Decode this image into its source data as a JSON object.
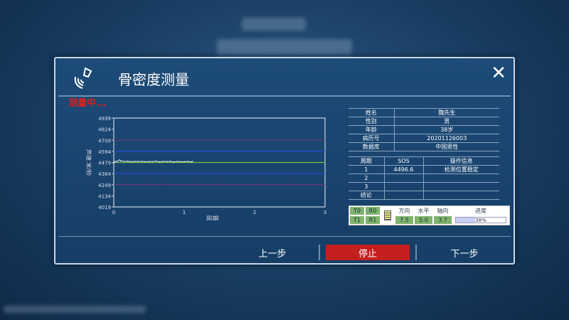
{
  "dialog": {
    "title": "骨密度测量",
    "status": "测量中...",
    "close_icon": "close-icon",
    "logo_icon": "ultrasound-probe-icon"
  },
  "patient": [
    {
      "label": "姓名",
      "value": "魏先生"
    },
    {
      "label": "性别",
      "value": "男"
    },
    {
      "label": "年龄",
      "value": "38岁"
    },
    {
      "label": "病历号",
      "value": "20201126003"
    },
    {
      "label": "数据库",
      "value": "中国男性"
    }
  ],
  "cycles": {
    "headers": [
      "周期",
      "SOS",
      "操作信息"
    ],
    "rows": [
      [
        "1",
        "4496.6",
        "检测位置稳定"
      ],
      [
        "2",
        "",
        ""
      ],
      [
        "3",
        "",
        ""
      ],
      [
        "结论",
        "",
        ""
      ]
    ]
  },
  "controls": {
    "t0": "T0",
    "r0": "R0",
    "t1": "T1",
    "r1": "R1",
    "labels": [
      "方向",
      "水平",
      "轴向"
    ],
    "values": [
      "7.5",
      "5.0",
      "3.7"
    ],
    "progress_label": "进度",
    "progress_text": "38%",
    "progress": 0.38
  },
  "buttons": {
    "prev": "上一步",
    "stop": "停止",
    "next": "下一步"
  },
  "colors": {
    "stop": "#c41f1f",
    "green_line": "#7cc04a",
    "blue_line": "#1e4fd0",
    "purple_line": "#6a3a7a"
  },
  "chart_data": {
    "type": "line",
    "xlabel": "周期",
    "ylabel": "声速 米/秒",
    "xlim": [
      0,
      3
    ],
    "ylim": [
      4019,
      4939
    ],
    "xticks": [
      "0",
      "1",
      "2",
      "3"
    ],
    "yticks": [
      "4939",
      "4824",
      "4709",
      "4594",
      "4479",
      "4364",
      "4249",
      "4134",
      "4019"
    ],
    "reference_lines": [
      {
        "y": 4709,
        "color": "purple"
      },
      {
        "y": 4594,
        "color": "blue"
      },
      {
        "y": 4479,
        "color": "green"
      },
      {
        "y": 4364,
        "color": "blue"
      },
      {
        "y": 4249,
        "color": "purple"
      }
    ],
    "series": [
      {
        "x": [
          0,
          0.02,
          0.05,
          0.08,
          0.1,
          0.15,
          0.2,
          0.25,
          0.3,
          0.35,
          0.4,
          0.45,
          0.5,
          0.55,
          0.6,
          0.65,
          0.7,
          0.75,
          0.8,
          0.85,
          0.9,
          0.95,
          1.0,
          1.05,
          1.1,
          1.12
        ],
        "y": [
          4470,
          4490,
          4492,
          4505,
          4495,
          4490,
          4492,
          4488,
          4490,
          4489,
          4491,
          4487,
          4490,
          4488,
          4493,
          4486,
          4491,
          4489,
          4492,
          4485,
          4490,
          4488,
          4487,
          4491,
          4486,
          4490
        ]
      }
    ]
  }
}
